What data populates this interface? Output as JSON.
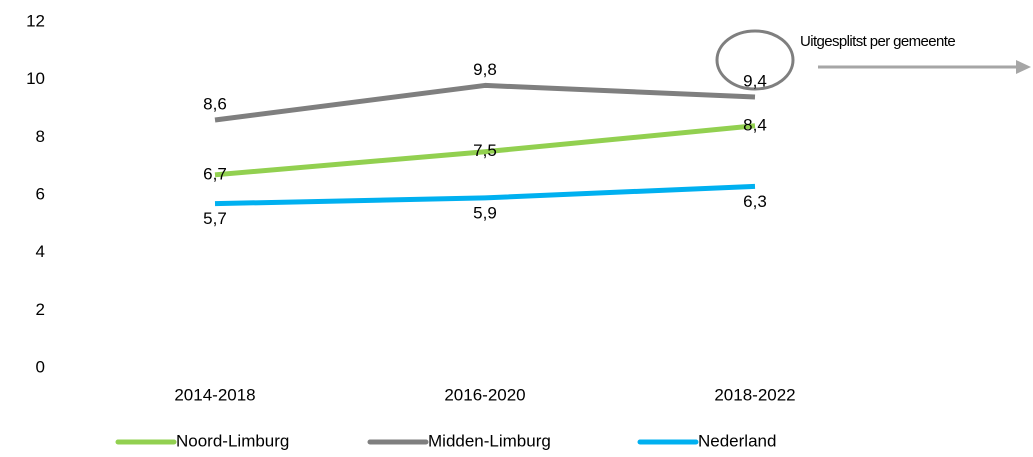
{
  "chart_data": {
    "type": "line",
    "categories": [
      "2014-2018",
      "2016-2020",
      "2018-2022"
    ],
    "series": [
      {
        "name": "Noord-Limburg",
        "color": "#92d050",
        "values": [
          6.7,
          7.5,
          8.4
        ],
        "value_labels": [
          "6,7",
          "7,5",
          "8,4"
        ]
      },
      {
        "name": "Midden-Limburg",
        "color": "#7f7f7f",
        "values": [
          8.6,
          9.8,
          9.4
        ],
        "value_labels": [
          "8,6",
          "9,8",
          "9,4"
        ]
      },
      {
        "name": "Nederland",
        "color": "#00b0f0",
        "values": [
          5.7,
          5.9,
          6.3
        ],
        "value_labels": [
          "5,7",
          "5,9",
          "6,3"
        ]
      }
    ],
    "ylim": [
      0,
      12
    ],
    "yticks": [
      0,
      2,
      4,
      6,
      8,
      10,
      12
    ],
    "grid": false,
    "legend": "bottom",
    "annotation": "Uitgesplitst per gemeente"
  }
}
